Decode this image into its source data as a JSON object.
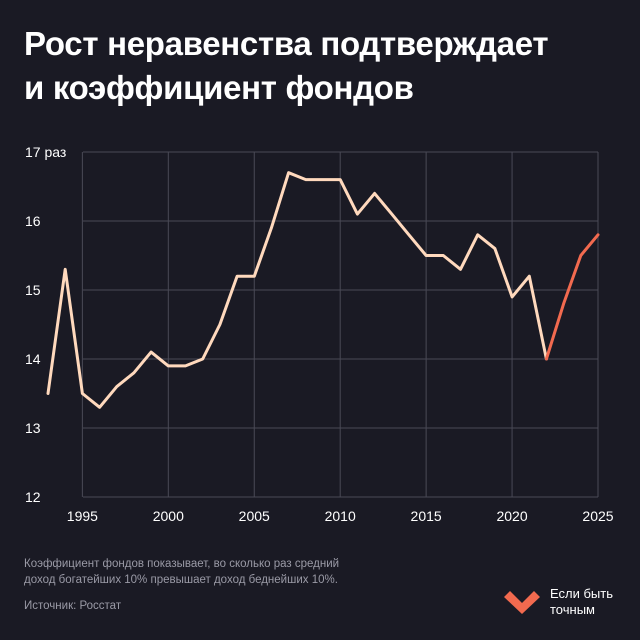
{
  "title": {
    "line1": "Рост неравенства подтверждает",
    "line2": "и коэффициент фондов"
  },
  "chart_data": {
    "type": "line",
    "y_unit_label": "17 раз",
    "ylim": [
      12,
      17
    ],
    "xlim": [
      1993,
      2025
    ],
    "y_ticks": [
      "12",
      "13",
      "14",
      "15",
      "16"
    ],
    "x_ticks": [
      "1995",
      "2000",
      "2005",
      "2010",
      "2015",
      "2020",
      "2025"
    ],
    "grid": "vertical-and-horizontal",
    "series": [
      {
        "color": "#ffd9bd",
        "x": [
          1993,
          1994,
          1995,
          1996,
          1997,
          1998,
          1999,
          2000,
          2001,
          2002,
          2003,
          2004,
          2005,
          2006,
          2007,
          2008,
          2009,
          2010,
          2011,
          2012,
          2013,
          2014,
          2015,
          2016,
          2017,
          2018,
          2019,
          2020,
          2021,
          2022
        ],
        "y": [
          13.5,
          15.3,
          13.5,
          13.3,
          13.6,
          13.8,
          14.1,
          13.9,
          13.9,
          14.0,
          14.5,
          15.2,
          15.2,
          15.9,
          16.7,
          16.6,
          16.6,
          16.6,
          16.1,
          16.4,
          16.1,
          15.8,
          15.5,
          15.5,
          15.3,
          15.8,
          15.6,
          14.9,
          15.2,
          14.0
        ]
      },
      {
        "color": "#f26a4f",
        "x": [
          2022,
          2023,
          2024,
          2025
        ],
        "y": [
          14.0,
          14.8,
          15.5,
          15.8
        ]
      }
    ]
  },
  "footnote": {
    "line1": "Коэффициент фондов показывает, во сколько раз средний",
    "line2": "доход богатейших 10% превышает доход беднейших 10%."
  },
  "source": "Источник: Росстат",
  "brand": {
    "line1": "Если быть",
    "line2": "точным",
    "logo_color": "#f26a4f"
  }
}
